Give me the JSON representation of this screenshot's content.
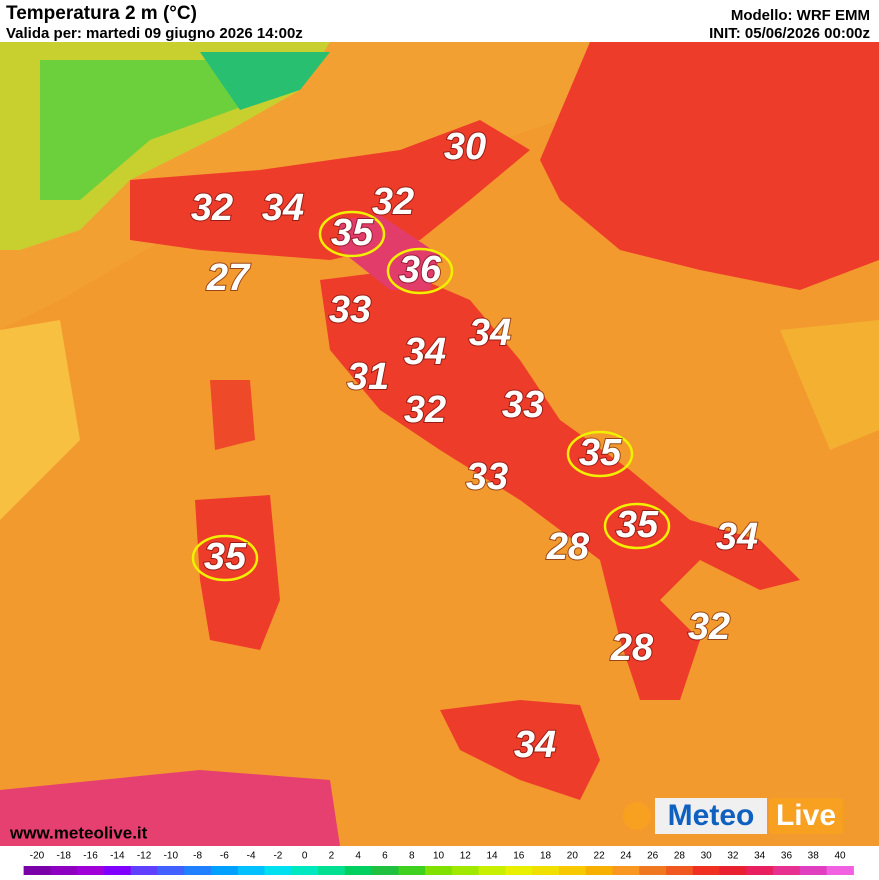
{
  "header": {
    "title": "Temperatura 2 m (°C)",
    "valid": "Valida per: martedi 09 giugno 2026 14:00z",
    "model": "Modello: WRF EMM",
    "init": "INIT: 05/06/2026 00:00z"
  },
  "labels": [
    {
      "value": "30"
    },
    {
      "value": "32"
    },
    {
      "value": "34"
    },
    {
      "value": "35",
      "circled": true
    },
    {
      "value": "32"
    },
    {
      "value": "36",
      "circled": true
    },
    {
      "value": "27"
    },
    {
      "value": "33"
    },
    {
      "value": "34"
    },
    {
      "value": "34"
    },
    {
      "value": "31"
    },
    {
      "value": "33"
    },
    {
      "value": "32"
    },
    {
      "value": "35",
      "circled": true
    },
    {
      "value": "33"
    },
    {
      "value": "35",
      "circled": true
    },
    {
      "value": "34"
    },
    {
      "value": "28"
    },
    {
      "value": "35",
      "circled": true
    },
    {
      "value": "32"
    },
    {
      "value": "28"
    },
    {
      "value": "34"
    }
  ],
  "footer": {
    "url": "www.meteolive.it",
    "logo_left": "Meteo",
    "logo_right": "Live"
  },
  "colorbar": {
    "ticks": [
      -20,
      -18,
      -16,
      -14,
      -12,
      -10,
      -8,
      -6,
      -4,
      -2,
      0,
      2,
      4,
      6,
      8,
      10,
      12,
      14,
      16,
      18,
      20,
      22,
      24,
      26,
      28,
      30,
      32,
      34,
      36,
      38,
      40
    ],
    "colors": [
      "#7a00a8",
      "#8e00c0",
      "#a000d8",
      "#8000ff",
      "#6040ff",
      "#4060ff",
      "#2080ff",
      "#00a0ff",
      "#00c0ff",
      "#00e0f0",
      "#00e8c0",
      "#00e090",
      "#00d060",
      "#20c040",
      "#40d020",
      "#80e000",
      "#a0e800",
      "#c8f000",
      "#e8f000",
      "#f0e000",
      "#f8c800",
      "#f8b000",
      "#f89820",
      "#f07820",
      "#f05820",
      "#f03020",
      "#e82030",
      "#e82060",
      "#e83090",
      "#e040c0",
      "#f060e0"
    ]
  }
}
